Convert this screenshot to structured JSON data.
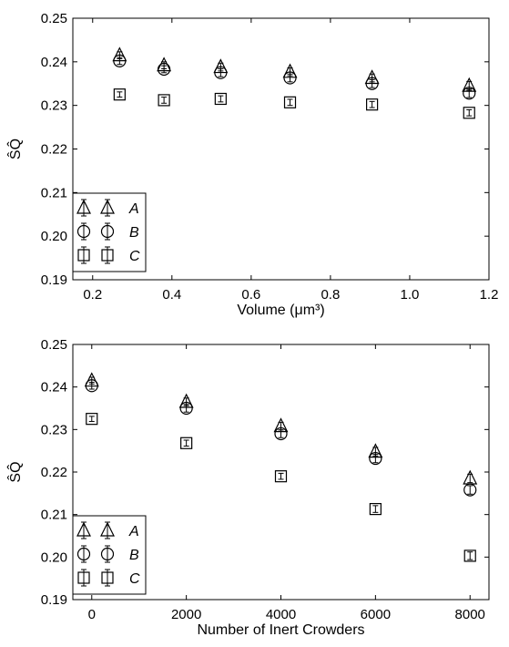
{
  "chart_data": [
    {
      "type": "scatter",
      "xlabel": "Volume (μm³)",
      "ylabel": "ŜQ̂",
      "xlim": [
        0.15,
        1.2
      ],
      "ylim": [
        0.19,
        0.25
      ],
      "xticks": [
        "0.2",
        "0.4",
        "0.6",
        "0.8",
        "1.0",
        "1.2"
      ],
      "yticks": [
        "0.19",
        "0.20",
        "0.21",
        "0.22",
        "0.23",
        "0.24",
        "0.25"
      ],
      "grid": false,
      "legend_position": "lower-left",
      "series": [
        {
          "name": "A",
          "marker": "triangle",
          "points": [
            {
              "x": 0.268,
              "y": 0.2415,
              "err": 0.0008
            },
            {
              "x": 0.38,
              "y": 0.2392,
              "err": 0.0008
            },
            {
              "x": 0.523,
              "y": 0.2388,
              "err": 0.0009
            },
            {
              "x": 0.698,
              "y": 0.2377,
              "err": 0.0009
            },
            {
              "x": 0.905,
              "y": 0.2363,
              "err": 0.0009
            },
            {
              "x": 1.15,
              "y": 0.2345,
              "err": 0.001
            }
          ]
        },
        {
          "name": "B",
          "marker": "circle",
          "points": [
            {
              "x": 0.268,
              "y": 0.2402,
              "err": 0.0008
            },
            {
              "x": 0.38,
              "y": 0.2383,
              "err": 0.0008
            },
            {
              "x": 0.523,
              "y": 0.2375,
              "err": 0.0009
            },
            {
              "x": 0.698,
              "y": 0.2363,
              "err": 0.0009
            },
            {
              "x": 0.905,
              "y": 0.235,
              "err": 0.0009
            },
            {
              "x": 1.15,
              "y": 0.2328,
              "err": 0.001
            }
          ]
        },
        {
          "name": "C",
          "marker": "square",
          "points": [
            {
              "x": 0.268,
              "y": 0.2325,
              "err": 0.0006
            },
            {
              "x": 0.38,
              "y": 0.2312,
              "err": 0.0007
            },
            {
              "x": 0.523,
              "y": 0.2315,
              "err": 0.0007
            },
            {
              "x": 0.698,
              "y": 0.2307,
              "err": 0.0007
            },
            {
              "x": 0.905,
              "y": 0.2302,
              "err": 0.0007
            },
            {
              "x": 1.15,
              "y": 0.2283,
              "err": 0.0007
            }
          ]
        }
      ]
    },
    {
      "type": "scatter",
      "xlabel": "Number of Inert Crowders",
      "ylabel": "ŜQ̂",
      "xlim": [
        -400,
        8400
      ],
      "ylim": [
        0.19,
        0.25
      ],
      "xticks": [
        "0",
        "2000",
        "4000",
        "6000",
        "8000"
      ],
      "yticks": [
        "0.19",
        "0.20",
        "0.21",
        "0.22",
        "0.23",
        "0.24",
        "0.25"
      ],
      "grid": false,
      "legend_position": "lower-left",
      "series": [
        {
          "name": "A",
          "marker": "triangle",
          "points": [
            {
              "x": 0,
              "y": 0.2415,
              "err": 0.0008
            },
            {
              "x": 2000,
              "y": 0.2365,
              "err": 0.0009
            },
            {
              "x": 4000,
              "y": 0.2308,
              "err": 0.0009
            },
            {
              "x": 6000,
              "y": 0.2248,
              "err": 0.001
            },
            {
              "x": 8000,
              "y": 0.2185,
              "err": 0.001
            }
          ]
        },
        {
          "name": "B",
          "marker": "circle",
          "points": [
            {
              "x": 0,
              "y": 0.2403,
              "err": 0.0008
            },
            {
              "x": 2000,
              "y": 0.235,
              "err": 0.0009
            },
            {
              "x": 4000,
              "y": 0.229,
              "err": 0.0009
            },
            {
              "x": 6000,
              "y": 0.2232,
              "err": 0.001
            },
            {
              "x": 8000,
              "y": 0.2158,
              "err": 0.001
            }
          ]
        },
        {
          "name": "C",
          "marker": "square",
          "points": [
            {
              "x": 0,
              "y": 0.2325,
              "err": 0.0006
            },
            {
              "x": 2000,
              "y": 0.2268,
              "err": 0.0007
            },
            {
              "x": 4000,
              "y": 0.219,
              "err": 0.0007
            },
            {
              "x": 6000,
              "y": 0.2113,
              "err": 0.0008
            },
            {
              "x": 8000,
              "y": 0.2003,
              "err": 0.0009
            }
          ]
        }
      ]
    }
  ]
}
